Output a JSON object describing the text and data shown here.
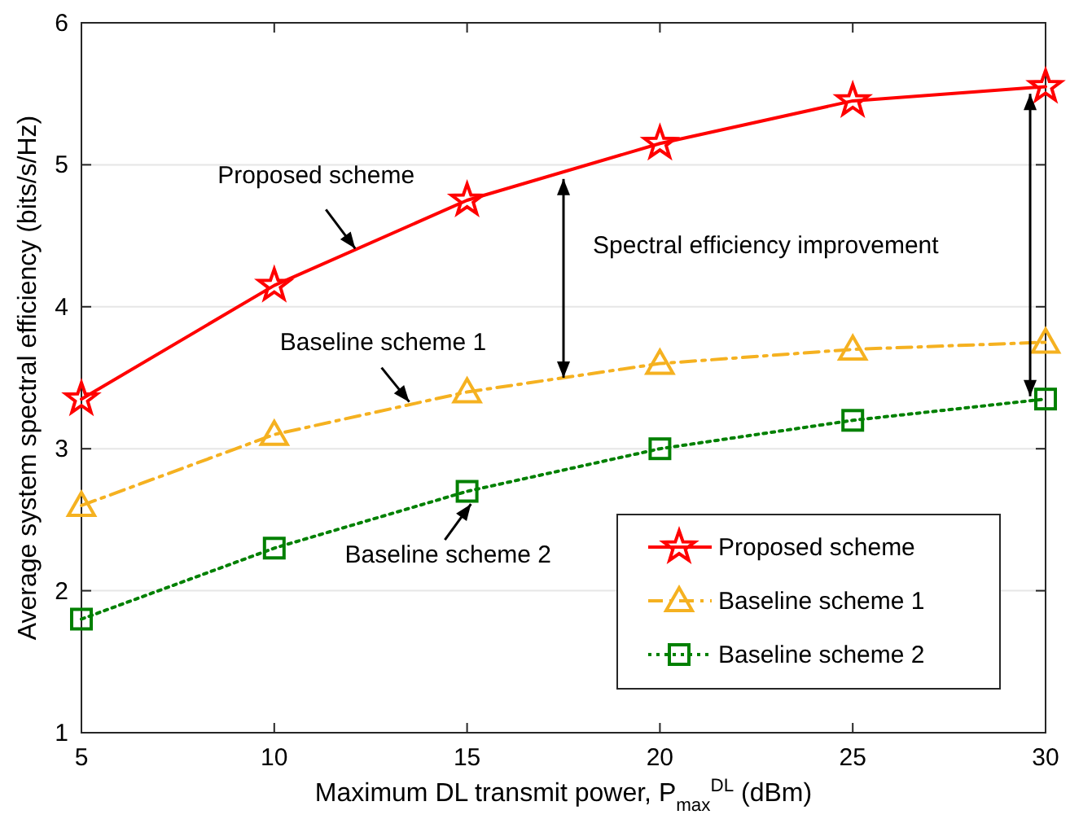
{
  "chart_data": {
    "type": "line",
    "xlabel": "Maximum DL transmit power, P$_{max}$$^{DL}$ (dBm)",
    "ylabel": "Average system spectral efficiency (bits/s/Hz)",
    "x": [
      5,
      10,
      15,
      20,
      25,
      30
    ],
    "series": [
      {
        "name": "Proposed scheme",
        "color": "#ff0000",
        "marker": "star",
        "line_style": "solid",
        "values": [
          3.35,
          4.15,
          4.75,
          5.15,
          5.45,
          5.55
        ]
      },
      {
        "name": "Baseline scheme 1",
        "color": "#f5b120",
        "marker": "triangle",
        "line_style": "dashed",
        "values": [
          2.6,
          3.1,
          3.4,
          3.6,
          3.7,
          3.75
        ]
      },
      {
        "name": "Baseline scheme 2",
        "color": "#008000",
        "marker": "square",
        "line_style": "dotted",
        "values": [
          1.8,
          2.3,
          2.7,
          3.0,
          3.2,
          3.35
        ]
      }
    ],
    "xlim": [
      5,
      30
    ],
    "xticks": [
      5,
      10,
      15,
      20,
      25,
      30
    ],
    "ylim": [
      1,
      6
    ],
    "yticks": [
      1,
      2,
      3,
      4,
      5,
      6
    ],
    "grid": "y",
    "legend": "bottom right",
    "annotations": [
      {
        "text": "Proposed scheme",
        "x": 12.1,
        "y": 4.41
      },
      {
        "text": "Baseline scheme 1",
        "x": 13.5,
        "y": 3.33
      },
      {
        "text": "Baseline scheme 2",
        "x": 15.1,
        "y": 2.61
      },
      "Spectral efficiency improvement"
    ]
  }
}
